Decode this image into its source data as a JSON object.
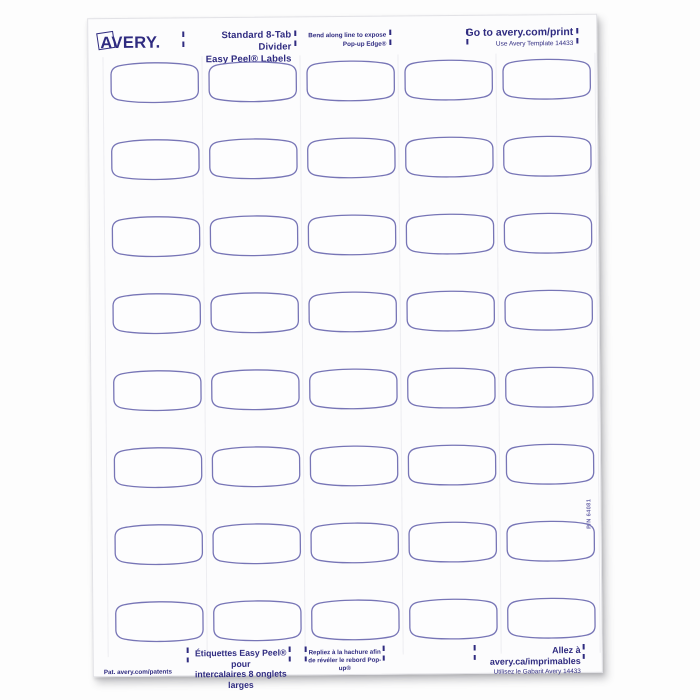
{
  "colors": {
    "ink": "#2f2b80",
    "label_outline": "#7775b6",
    "label_fill": "#fdfdfe",
    "cut_line": "#ededf1",
    "sheet_bg": "#fcfcfd",
    "page_bg": "#fdfdfd"
  },
  "brand": {
    "logo_text": "AVERY."
  },
  "header": {
    "product_line1": "Standard 8-Tab Divider",
    "product_line2": "Easy Peel® Labels",
    "bend_line1": "Bend along line to expose",
    "bend_line2": "Pop-up Edge®",
    "web_line1": "Go to avery.com/print",
    "web_line2": "Use Avery Template 14433"
  },
  "footer": {
    "patent": "Pat. avery.com/patents",
    "fr_product_line1": "Étiquettes Easy Peel® pour",
    "fr_product_line2": "intercalaires 8 onglets larges",
    "fr_bend_line1": "Repliez à la hachure afin",
    "fr_bend_line2": "de révéler le rebord Pop-up®",
    "fr_web_line1": "Allez à avery.ca/imprimables",
    "fr_web_line2": "Utilisez le Gabarit Avery 14433"
  },
  "side": {
    "part_number": "P/N 64081"
  },
  "sheet": {
    "grid": {
      "rows": 8,
      "columns": 5,
      "total_labels": 40
    }
  }
}
